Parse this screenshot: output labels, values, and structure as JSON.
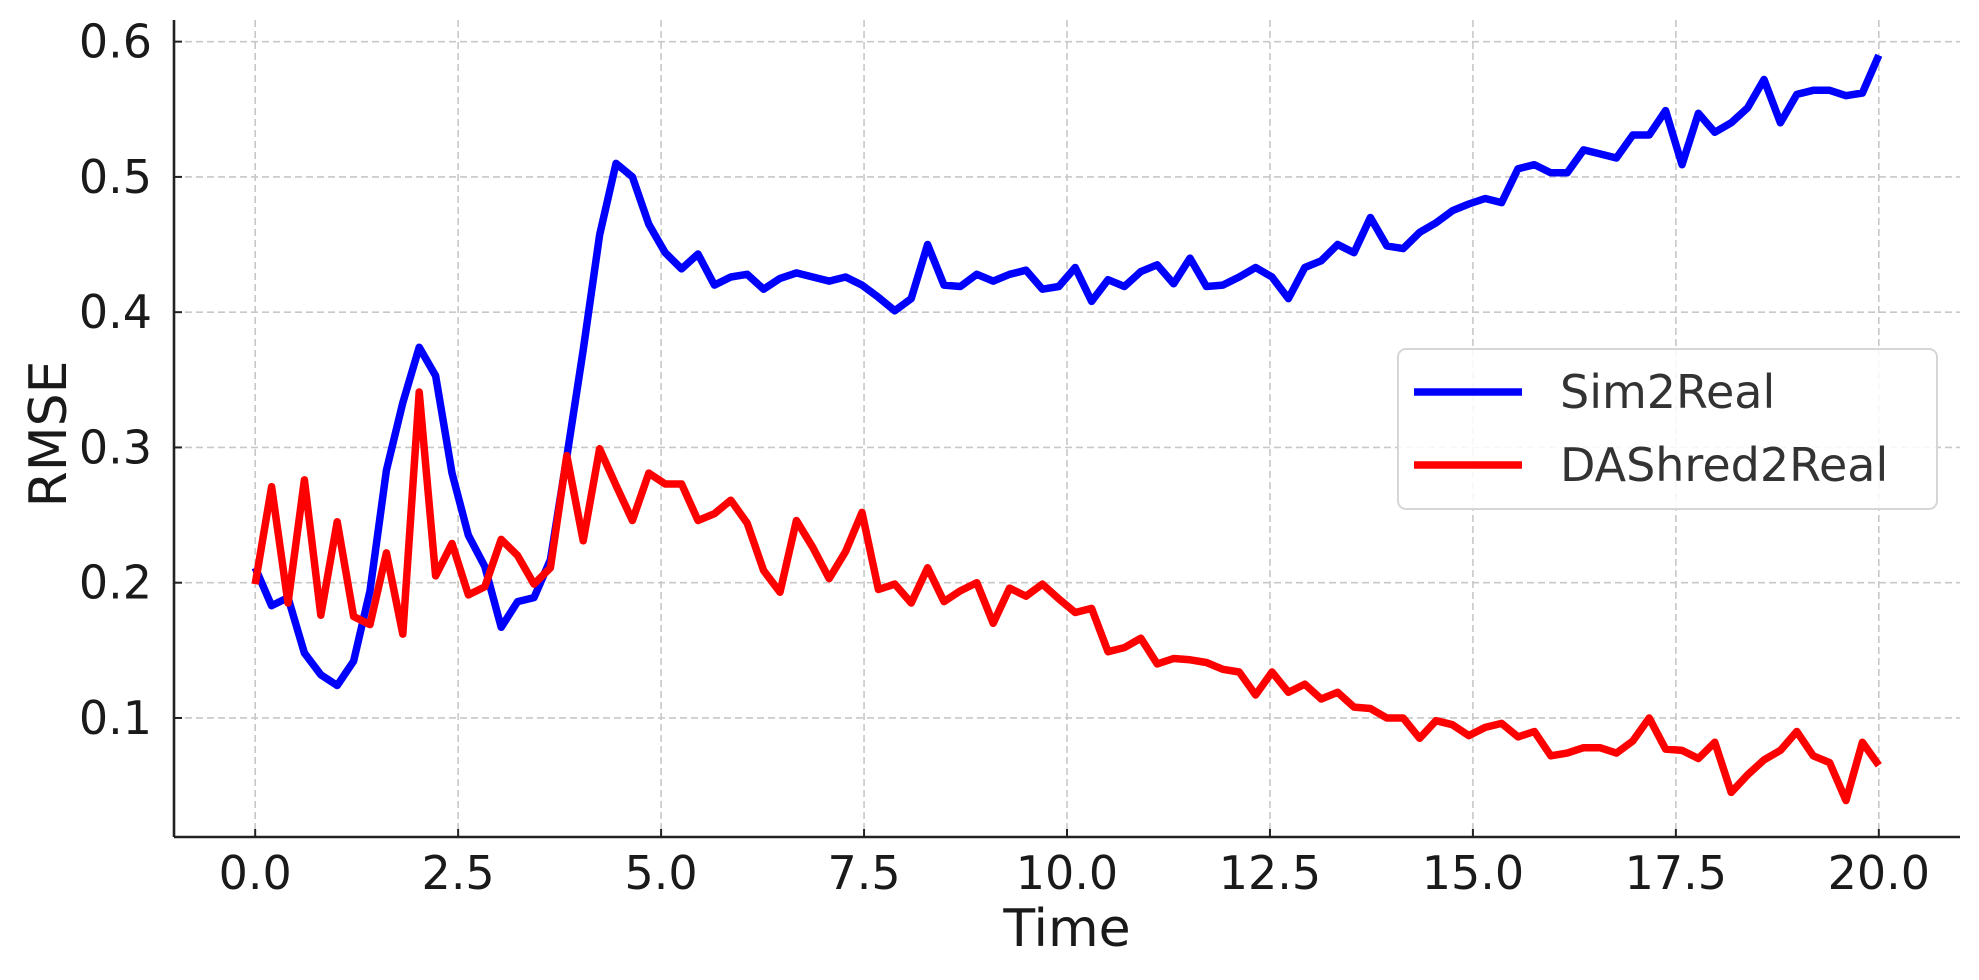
{
  "chart_data": {
    "type": "line",
    "title": "",
    "xlabel": "Time",
    "ylabel": "RMSE",
    "xlim": [
      -1.0,
      21.0
    ],
    "ylim": [
      0.012,
      0.616
    ],
    "x_ticks": [
      0.0,
      2.5,
      5.0,
      7.5,
      10.0,
      12.5,
      15.0,
      17.5,
      20.0
    ],
    "x_tick_labels": [
      "0.0",
      "2.5",
      "5.0",
      "7.5",
      "10.0",
      "12.5",
      "15.0",
      "17.5",
      "20.0"
    ],
    "y_ticks": [
      0.1,
      0.2,
      0.3,
      0.4,
      0.5,
      0.6
    ],
    "y_tick_labels": [
      "0.1",
      "0.2",
      "0.3",
      "0.4",
      "0.5",
      "0.6"
    ],
    "grid": true,
    "legend_position": "center right",
    "x_start": 0.0,
    "x_end": 20.0,
    "n_points": 100,
    "series": [
      {
        "name": "Sim2Real",
        "color": "#0000ff",
        "values": [
          0.211,
          0.183,
          0.189,
          0.148,
          0.132,
          0.124,
          0.142,
          0.194,
          0.283,
          0.333,
          0.374,
          0.353,
          0.281,
          0.235,
          0.212,
          0.167,
          0.186,
          0.189,
          0.217,
          0.293,
          0.372,
          0.457,
          0.51,
          0.5,
          0.465,
          0.444,
          0.432,
          0.443,
          0.42,
          0.426,
          0.428,
          0.417,
          0.425,
          0.429,
          0.426,
          0.423,
          0.426,
          0.42,
          0.411,
          0.401,
          0.41,
          0.45,
          0.42,
          0.419,
          0.428,
          0.423,
          0.428,
          0.431,
          0.417,
          0.419,
          0.433,
          0.408,
          0.424,
          0.419,
          0.43,
          0.435,
          0.421,
          0.44,
          0.419,
          0.42,
          0.426,
          0.433,
          0.426,
          0.41,
          0.433,
          0.438,
          0.45,
          0.444,
          0.47,
          0.449,
          0.447,
          0.459,
          0.466,
          0.475,
          0.48,
          0.484,
          0.481,
          0.506,
          0.509,
          0.503,
          0.503,
          0.52,
          0.517,
          0.514,
          0.531,
          0.531,
          0.549,
          0.509,
          0.547,
          0.533,
          0.54,
          0.551,
          0.572,
          0.54,
          0.561,
          0.564,
          0.564,
          0.56,
          0.562,
          0.59
        ]
      },
      {
        "name": "DAShred2Real",
        "color": "#ff0000",
        "values": [
          0.199,
          0.271,
          0.185,
          0.276,
          0.176,
          0.245,
          0.175,
          0.169,
          0.222,
          0.162,
          0.341,
          0.205,
          0.229,
          0.191,
          0.197,
          0.232,
          0.22,
          0.199,
          0.211,
          0.294,
          0.231,
          0.299,
          0.272,
          0.246,
          0.281,
          0.273,
          0.273,
          0.246,
          0.251,
          0.261,
          0.244,
          0.209,
          0.193,
          0.246,
          0.226,
          0.203,
          0.223,
          0.252,
          0.195,
          0.199,
          0.185,
          0.211,
          0.186,
          0.194,
          0.2,
          0.17,
          0.196,
          0.19,
          0.199,
          0.188,
          0.178,
          0.181,
          0.149,
          0.152,
          0.159,
          0.14,
          0.144,
          0.143,
          0.141,
          0.136,
          0.134,
          0.117,
          0.134,
          0.119,
          0.125,
          0.114,
          0.119,
          0.108,
          0.107,
          0.1,
          0.1,
          0.085,
          0.098,
          0.095,
          0.087,
          0.093,
          0.096,
          0.086,
          0.09,
          0.072,
          0.074,
          0.078,
          0.078,
          0.074,
          0.083,
          0.1,
          0.077,
          0.076,
          0.07,
          0.082,
          0.045,
          0.058,
          0.069,
          0.076,
          0.09,
          0.072,
          0.067,
          0.039,
          0.082,
          0.065
        ]
      }
    ]
  },
  "legend": {
    "items": [
      {
        "label": "Sim2Real",
        "color": "#0000ff"
      },
      {
        "label": "DAShred2Real",
        "color": "#ff0000"
      }
    ]
  },
  "axes": {
    "xlabel": "Time",
    "ylabel": "RMSE"
  }
}
